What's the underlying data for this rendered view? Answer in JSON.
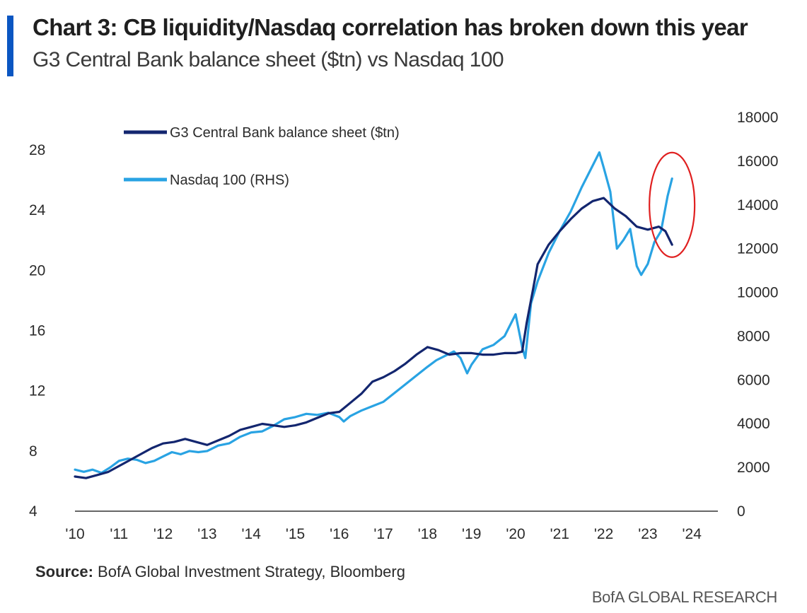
{
  "header": {
    "title": "Chart 3: CB liquidity/Nasdaq correlation has broken down this year",
    "subtitle": "G3 Central Bank balance sheet ($tn) vs Nasdaq 100",
    "accent_color": "#0a56c2"
  },
  "footer": {
    "source_label": "Source:",
    "source_text": "BofA Global Investment Strategy, Bloomberg",
    "brand": "BofA GLOBAL RESEARCH"
  },
  "chart_data": {
    "type": "line",
    "title": "Chart 3: CB liquidity/Nasdaq correlation has broken down this year",
    "subtitle": "G3 Central Bank balance sheet ($tn) vs Nasdaq 100",
    "x_range": [
      2010,
      2024
    ],
    "x_ticks": [
      "'10",
      "'11",
      "'12",
      "'13",
      "'14",
      "'15",
      "'16",
      "'17",
      "'18",
      "'19",
      "'20",
      "'21",
      "'22",
      "'23",
      "'24"
    ],
    "y_left": {
      "range": [
        4,
        28
      ],
      "ticks": [
        "28",
        "24",
        "20",
        "16",
        "12",
        "8",
        "4"
      ]
    },
    "y_right": {
      "range": [
        0,
        18000
      ],
      "ticks": [
        "18000",
        "16000",
        "14000",
        "12000",
        "10000",
        "8000",
        "6000",
        "4000",
        "2000",
        "0"
      ]
    },
    "legend_position": "top-left",
    "annotation": {
      "type": "circle",
      "color": "#e02020",
      "x_center": 2023.55,
      "y_right_center": 14000
    },
    "series": [
      {
        "name": "G3 Central Bank balance sheet ($tn)",
        "axis": "left",
        "color": "#13266f",
        "x": [
          2010.0,
          2010.25,
          2010.5,
          2010.75,
          2011.0,
          2011.25,
          2011.5,
          2011.75,
          2012.0,
          2012.25,
          2012.5,
          2012.75,
          2013.0,
          2013.25,
          2013.5,
          2013.75,
          2014.0,
          2014.25,
          2014.5,
          2014.75,
          2015.0,
          2015.25,
          2015.5,
          2015.75,
          2016.0,
          2016.25,
          2016.5,
          2016.75,
          2017.0,
          2017.25,
          2017.5,
          2017.75,
          2018.0,
          2018.25,
          2018.5,
          2018.75,
          2019.0,
          2019.25,
          2019.5,
          2019.75,
          2020.0,
          2020.15,
          2020.25,
          2020.4,
          2020.5,
          2020.75,
          2021.0,
          2021.25,
          2021.5,
          2021.75,
          2022.0,
          2022.25,
          2022.5,
          2022.75,
          2023.0,
          2023.25,
          2023.4,
          2023.55
        ],
        "values": [
          6.3,
          6.2,
          6.4,
          6.6,
          7.0,
          7.4,
          7.8,
          8.2,
          8.5,
          8.6,
          8.8,
          8.6,
          8.4,
          8.7,
          9.0,
          9.4,
          9.6,
          9.8,
          9.7,
          9.6,
          9.7,
          9.9,
          10.2,
          10.5,
          10.6,
          11.2,
          11.8,
          12.6,
          12.9,
          13.3,
          13.8,
          14.4,
          14.9,
          14.7,
          14.4,
          14.5,
          14.5,
          14.4,
          14.4,
          14.5,
          14.5,
          14.6,
          16.5,
          18.8,
          20.4,
          21.7,
          22.6,
          23.4,
          24.1,
          24.6,
          24.8,
          24.1,
          23.6,
          22.9,
          22.7,
          22.9,
          22.6,
          21.7
        ]
      },
      {
        "name": "Nasdaq 100 (RHS)",
        "axis": "right",
        "color": "#29a3e3",
        "x": [
          2010.0,
          2010.2,
          2010.4,
          2010.6,
          2010.8,
          2011.0,
          2011.2,
          2011.4,
          2011.6,
          2011.8,
          2012.0,
          2012.2,
          2012.4,
          2012.6,
          2012.8,
          2013.0,
          2013.25,
          2013.5,
          2013.75,
          2014.0,
          2014.25,
          2014.5,
          2014.75,
          2015.0,
          2015.25,
          2015.5,
          2015.75,
          2016.0,
          2016.1,
          2016.25,
          2016.5,
          2016.75,
          2017.0,
          2017.25,
          2017.5,
          2017.75,
          2018.0,
          2018.2,
          2018.4,
          2018.6,
          2018.75,
          2018.9,
          2019.0,
          2019.25,
          2019.5,
          2019.75,
          2020.0,
          2020.15,
          2020.22,
          2020.35,
          2020.5,
          2020.75,
          2021.0,
          2021.25,
          2021.5,
          2021.75,
          2021.9,
          2022.0,
          2022.15,
          2022.3,
          2022.45,
          2022.6,
          2022.75,
          2022.85,
          2023.0,
          2023.15,
          2023.3,
          2023.45,
          2023.55
        ],
        "values": [
          1900,
          1800,
          1900,
          1750,
          2000,
          2300,
          2400,
          2350,
          2200,
          2300,
          2500,
          2700,
          2600,
          2750,
          2700,
          2750,
          3000,
          3100,
          3400,
          3600,
          3650,
          3900,
          4200,
          4300,
          4450,
          4400,
          4500,
          4300,
          4100,
          4350,
          4600,
          4800,
          5000,
          5400,
          5800,
          6200,
          6600,
          6900,
          7100,
          7300,
          7000,
          6300,
          6700,
          7400,
          7600,
          8000,
          9000,
          7500,
          7000,
          9500,
          10500,
          11800,
          12800,
          13700,
          14800,
          15800,
          16400,
          15700,
          14600,
          12000,
          12400,
          12900,
          11200,
          10800,
          11300,
          12300,
          12800,
          14400,
          15200
        ]
      }
    ]
  }
}
